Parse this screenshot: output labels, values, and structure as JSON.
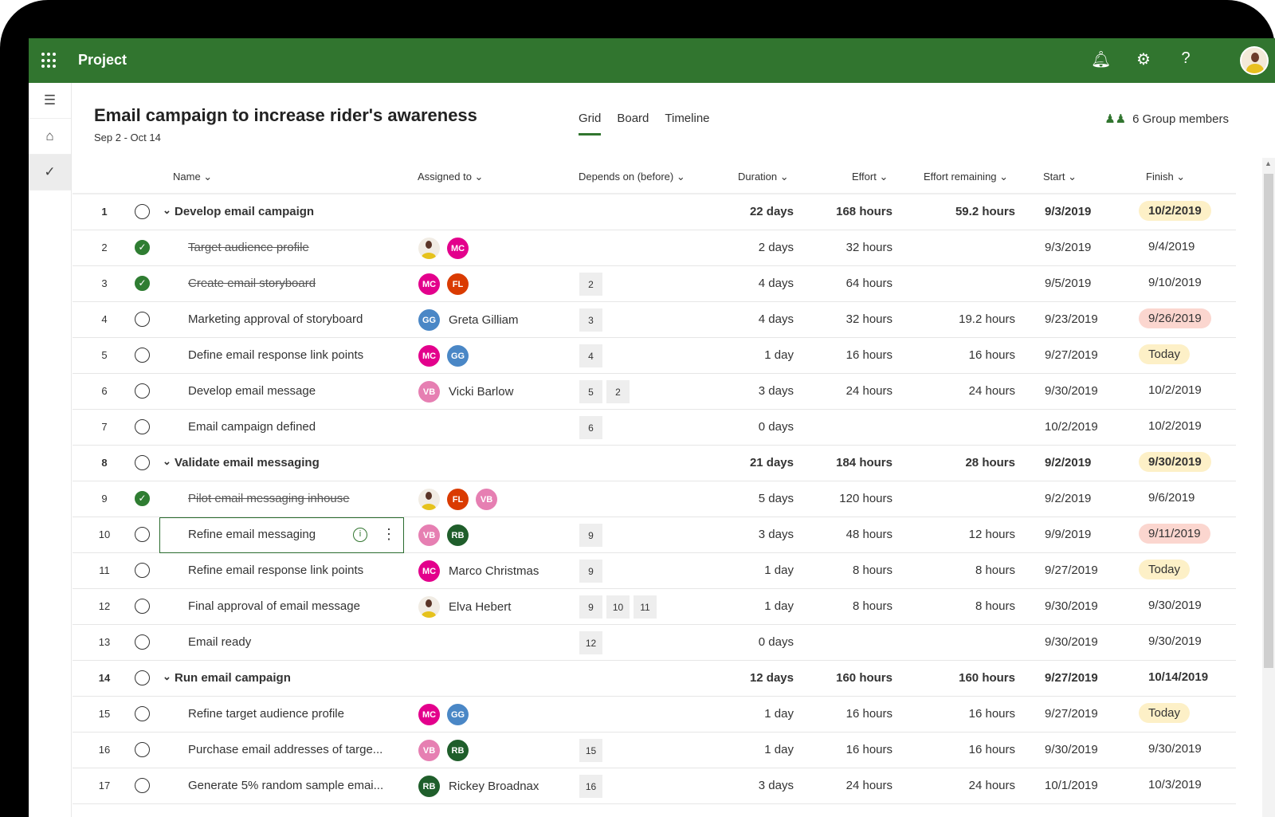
{
  "app": {
    "name": "Project",
    "icons": [
      "waffle-icon",
      "bell-icon",
      "gear-icon",
      "help-icon",
      "avatar"
    ]
  },
  "project": {
    "title": "Email campaign to increase rider's awareness",
    "dates": "Sep 2 - Oct 14"
  },
  "tabs": [
    {
      "label": "Grid",
      "active": true
    },
    {
      "label": "Board"
    },
    {
      "label": "Timeline"
    }
  ],
  "members": "6 Group members",
  "columns": {
    "name": "Name",
    "assigned": "Assigned to",
    "depends": "Depends on (before)",
    "duration": "Duration",
    "effort": "Effort",
    "remaining": "Effort remaining",
    "start": "Start",
    "finish": "Finish"
  },
  "colors": {
    "MC": "#e3008c",
    "FL": "#da3b01",
    "GG": "#4a87c6",
    "VB": "#e67fb2",
    "RB": "#1f5e2b",
    "accent": "#31752f"
  },
  "rows": [
    {
      "n": "1",
      "name": "Develop email campaign",
      "group": true,
      "dur": "22 days",
      "eff": "168 hours",
      "rem": "59.2 hours",
      "start": "9/3/2019",
      "fin": "10/2/2019",
      "finStyle": "soon"
    },
    {
      "n": "2",
      "name": "Target audience profile",
      "done": true,
      "assigned": [
        "photo",
        "MC"
      ],
      "dur": "2 days",
      "eff": "32 hours",
      "start": "9/3/2019",
      "fin": "9/4/2019"
    },
    {
      "n": "3",
      "name": "Create email storyboard",
      "done": true,
      "assigned": [
        "MC",
        "FL"
      ],
      "deps": [
        "2"
      ],
      "dur": "4 days",
      "eff": "64 hours",
      "start": "9/5/2019",
      "fin": "9/10/2019"
    },
    {
      "n": "4",
      "name": "Marketing approval of storyboard",
      "assigned": [
        "GG"
      ],
      "person": "Greta Gilliam",
      "deps": [
        "3"
      ],
      "dur": "4 days",
      "eff": "32 hours",
      "rem": "19.2 hours",
      "start": "9/23/2019",
      "fin": "9/26/2019",
      "finStyle": "late"
    },
    {
      "n": "5",
      "name": "Define email response link points",
      "assigned": [
        "MC",
        "GG"
      ],
      "deps": [
        "4"
      ],
      "dur": "1 day",
      "eff": "16 hours",
      "rem": "16 hours",
      "start": "9/27/2019",
      "fin": "Today",
      "finStyle": "soon"
    },
    {
      "n": "6",
      "name": "Develop email message",
      "assigned": [
        "VB"
      ],
      "person": "Vicki Barlow",
      "deps": [
        "5",
        "2"
      ],
      "dur": "3 days",
      "eff": "24 hours",
      "rem": "24 hours",
      "start": "9/30/2019",
      "fin": "10/2/2019"
    },
    {
      "n": "7",
      "name": "Email campaign defined",
      "deps": [
        "6"
      ],
      "dur": "0 days",
      "start": "10/2/2019",
      "fin": "10/2/2019"
    },
    {
      "n": "8",
      "name": "Validate email messaging",
      "group": true,
      "dur": "21 days",
      "eff": "184 hours",
      "rem": "28 hours",
      "start": "9/2/2019",
      "fin": "9/30/2019",
      "finStyle": "soon"
    },
    {
      "n": "9",
      "name": "Pilot email messaging inhouse",
      "done": true,
      "assigned": [
        "photo",
        "FL",
        "VB"
      ],
      "dur": "5 days",
      "eff": "120 hours",
      "start": "9/2/2019",
      "fin": "9/6/2019"
    },
    {
      "n": "10",
      "name": "Refine email messaging",
      "selected": true,
      "assigned": [
        "VB",
        "RB"
      ],
      "deps": [
        "9"
      ],
      "dur": "3 days",
      "eff": "48 hours",
      "rem": "12 hours",
      "start": "9/9/2019",
      "fin": "9/11/2019",
      "finStyle": "late"
    },
    {
      "n": "11",
      "name": "Refine email response link points",
      "assigned": [
        "MC"
      ],
      "person": "Marco Christmas",
      "deps": [
        "9"
      ],
      "dur": "1 day",
      "eff": "8 hours",
      "rem": "8 hours",
      "start": "9/27/2019",
      "fin": "Today",
      "finStyle": "soon"
    },
    {
      "n": "12",
      "name": "Final approval of email message",
      "assigned": [
        "photo"
      ],
      "person": "Elva Hebert",
      "deps": [
        "9",
        "10",
        "11"
      ],
      "dur": "1 day",
      "eff": "8 hours",
      "rem": "8 hours",
      "start": "9/30/2019",
      "fin": "9/30/2019"
    },
    {
      "n": "13",
      "name": "Email ready",
      "deps": [
        "12"
      ],
      "dur": "0 days",
      "start": "9/30/2019",
      "fin": "9/30/2019"
    },
    {
      "n": "14",
      "name": "Run email campaign",
      "group": true,
      "dur": "12 days",
      "eff": "160 hours",
      "rem": "160 hours",
      "start": "9/27/2019",
      "fin": "10/14/2019"
    },
    {
      "n": "15",
      "name": "Refine target audience profile",
      "assigned": [
        "MC",
        "GG"
      ],
      "dur": "1 day",
      "eff": "16 hours",
      "rem": "16 hours",
      "start": "9/27/2019",
      "fin": "Today",
      "finStyle": "soon"
    },
    {
      "n": "16",
      "name": "Purchase email addresses of targe...",
      "assigned": [
        "VB",
        "RB"
      ],
      "deps": [
        "15"
      ],
      "dur": "1 day",
      "eff": "16 hours",
      "rem": "16 hours",
      "start": "9/30/2019",
      "fin": "9/30/2019"
    },
    {
      "n": "17",
      "name": "Generate 5% random sample emai...",
      "assigned": [
        "RB"
      ],
      "person": "Rickey Broadnax",
      "deps": [
        "16"
      ],
      "dur": "3 days",
      "eff": "24 hours",
      "rem": "24 hours",
      "start": "10/1/2019",
      "fin": "10/3/2019"
    }
  ]
}
